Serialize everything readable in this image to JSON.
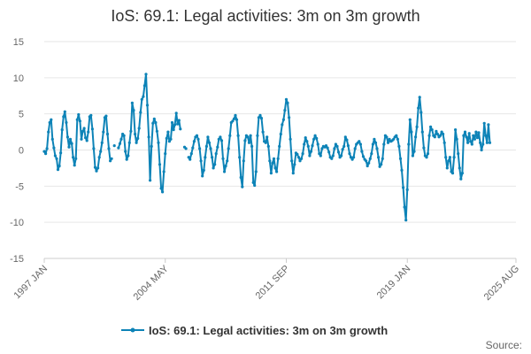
{
  "chart_data": {
    "type": "line",
    "title": "IoS: 69.1: Legal activities: 3m on 3m growth",
    "xlabel": "",
    "ylabel": "",
    "ylim": [
      -15,
      15
    ],
    "yticks": [
      -15,
      -10,
      -5,
      0,
      5,
      10,
      15
    ],
    "xrange": [
      1997.0,
      2025.583
    ],
    "xticks": [
      {
        "label": "1997 JAN",
        "value": 1997.0
      },
      {
        "label": "2004 MAY",
        "value": 2004.333
      },
      {
        "label": "2011 SEP",
        "value": 2011.667
      },
      {
        "label": "2019 JAN",
        "value": 2019.0
      },
      {
        "label": "2025 AUG",
        "value": 2025.583
      }
    ],
    "series": [
      {
        "name": "IoS: 69.1: Legal activities: 3m on 3m growth",
        "color": "#0d83b7",
        "x_start": 1997.0,
        "x_step": 0.08333,
        "values": [
          -0.2,
          -0.5,
          0.2,
          2.5,
          3.8,
          4.2,
          1.5,
          0.3,
          -0.8,
          -1.2,
          -2.7,
          -2.2,
          -0.4,
          2.8,
          4.6,
          5.3,
          3.8,
          1.8,
          0.4,
          1.5,
          0.9,
          -1.0,
          -2.1,
          -1.2,
          4.2,
          4.9,
          4.0,
          1.5,
          2.6,
          3.0,
          1.7,
          1.3,
          2.5,
          4.6,
          4.8,
          2.9,
          0.2,
          -2.4,
          -2.9,
          -2.5,
          -1.0,
          -0.2,
          1.0,
          2.5,
          4.5,
          4.7,
          2.2,
          0.2,
          -1.5,
          -1.2,
          null,
          0.6,
          null,
          null,
          0.3,
          0.9,
          1.5,
          2.2,
          2.0,
          -0.2,
          -1.3,
          -0.8,
          1.0,
          2.6,
          6.5,
          5.5,
          2.2,
          1.0,
          1.6,
          3.0,
          5.2,
          7.0,
          7.4,
          8.9,
          10.5,
          6.2,
          1.8,
          -4.2,
          0.5,
          3.7,
          4.3,
          3.8,
          2.6,
          1.0,
          -2.0,
          -5.3,
          -5.8,
          -3.0,
          -0.5,
          1.6,
          2.5,
          1.2,
          1.5,
          3.8,
          2.8,
          3.5,
          5.1,
          3.6,
          4.1,
          2.9,
          null,
          null,
          0.4,
          0.2,
          null,
          -1.0,
          -1.3,
          -0.5,
          0.3,
          1.2,
          1.8,
          2.0,
          1.5,
          0.2,
          -1.5,
          -3.6,
          -2.8,
          -1.0,
          0.5,
          1.8,
          1.0,
          0.2,
          -1.0,
          -2.5,
          -2.0,
          -0.5,
          0.4,
          1.5,
          1.8,
          1.3,
          -1.2,
          -3.0,
          -2.2,
          -1.5,
          0.2,
          2.0,
          3.8,
          4.0,
          4.3,
          4.8,
          4.2,
          2.0,
          -1.0,
          -3.8,
          -5.1,
          -1.5,
          1.3,
          2.0,
          1.8,
          1.0,
          2.0,
          0.5,
          -4.5,
          -4.9,
          -3.0,
          2.0,
          4.5,
          4.8,
          4.4,
          2.5,
          1.2,
          1.0,
          1.8,
          0.5,
          -1.5,
          -3.2,
          -1.8,
          -1.2,
          -2.5,
          -3.0,
          -1.2,
          0.5,
          2.2,
          3.5,
          4.2,
          5.5,
          7.0,
          6.5,
          4.5,
          1.5,
          -1.5,
          -3.2,
          -2.0,
          -0.4,
          -0.6,
          -1.0,
          -1.5,
          -1.2,
          -0.5,
          0.8,
          1.7,
          1.2,
          0.5,
          -0.8,
          -0.2,
          0.6,
          1.5,
          2.0,
          1.6,
          0.8,
          -0.5,
          -0.8,
          0.2,
          0.5,
          0.4,
          0.6,
          0.3,
          -0.3,
          -1.0,
          -1.2,
          -0.8,
          0.2,
          0.8,
          0.5,
          -0.3,
          -1.0,
          -0.8,
          0.1,
          0.5,
          1.8,
          1.4,
          0.6,
          -0.5,
          -1.0,
          -1.3,
          -1.0,
          0.2,
          0.8,
          1.0,
          1.2,
          0.8,
          -0.2,
          -0.9,
          -1.3,
          -1.5,
          -2.2,
          -1.8,
          -1.2,
          -0.5,
          0.8,
          1.5,
          1.0,
          0.2,
          -1.0,
          -2.3,
          -2.0,
          -1.2,
          0.8,
          2.0,
          1.8,
          1.0,
          1.5,
          1.2,
          1.3,
          1.5,
          1.8,
          2.0,
          1.5,
          0.5,
          -1.2,
          -2.8,
          -5.2,
          -7.9,
          -9.7,
          -5.5,
          0.8,
          4.2,
          2.5,
          -0.8,
          -0.2,
          1.8,
          3.2,
          5.8,
          7.3,
          5.2,
          2.5,
          0.3,
          -0.8,
          -1.0,
          -0.5,
          2.0,
          3.2,
          2.8,
          2.0,
          1.8,
          2.6,
          2.2,
          1.8,
          2.0,
          2.5,
          2.2,
          1.0,
          -1.0,
          -2.5,
          -1.5,
          -1.0,
          -3.0,
          -3.2,
          -1.0,
          2.8,
          1.5,
          -0.5,
          -2.5,
          -4.0,
          -3.2,
          2.0,
          2.5,
          1.8,
          1.0,
          2.3,
          1.2,
          0.8,
          2.0,
          1.5,
          2.5,
          1.7,
          2.4,
          1.0,
          0.0,
          0.8,
          3.7,
          2.0,
          1.0,
          3.5,
          1.0
        ]
      }
    ],
    "legend": {
      "label": "IoS: 69.1: Legal activities: 3m on 3m growth",
      "position": "bottom-center"
    },
    "grid": true
  },
  "footer": {
    "source_label": "Source:"
  }
}
